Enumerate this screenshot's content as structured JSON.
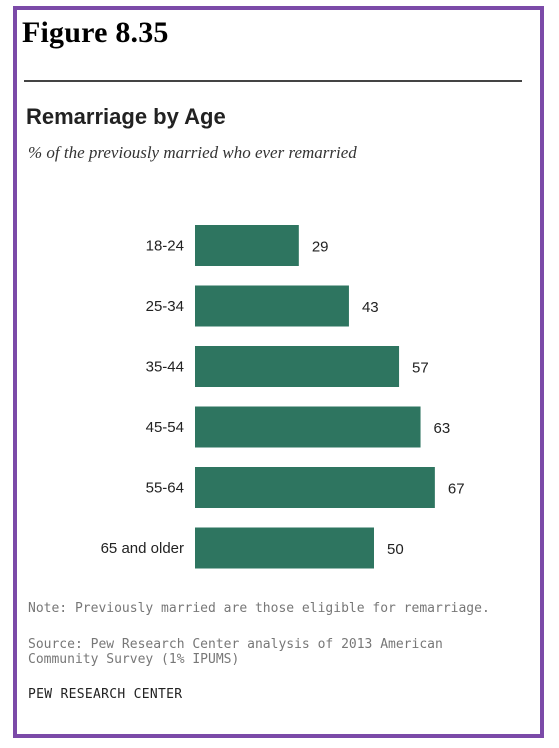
{
  "figure_label": "Figure 8.35",
  "colors": {
    "frame": "#7b4aa8",
    "bar": "#2e7560"
  },
  "chart_data": {
    "type": "bar",
    "orientation": "horizontal",
    "title": "Remarriage  by Age",
    "subtitle": "% of the previously married who ever remarried",
    "categories": [
      "18-24",
      "25-34",
      "35-44",
      "45-54",
      "55-64",
      "65 and older"
    ],
    "values": [
      29,
      43,
      57,
      63,
      67,
      50
    ],
    "xlim": [
      0,
      100
    ],
    "grid": false,
    "legend": "none"
  },
  "footer": {
    "note": "Note: Previously married are those eligible for remarriage.",
    "source": "Source: Pew Research Center analysis of 2013 American Community Survey (1% IPUMS)",
    "brand": "PEW RESEARCH CENTER"
  }
}
